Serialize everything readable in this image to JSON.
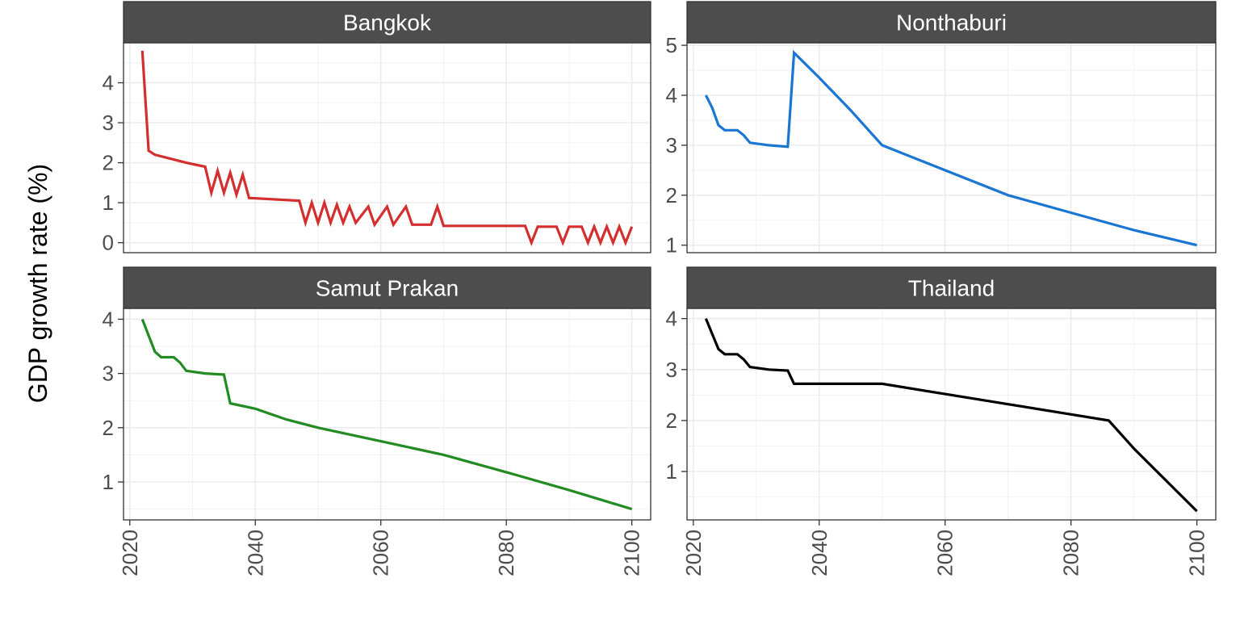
{
  "chart_data": {
    "type": "line",
    "ylabel": "GDP growth rate (%)",
    "xlabel": "",
    "x_ticks": [
      2020,
      2040,
      2060,
      2080,
      2100
    ],
    "xlim": [
      2019,
      2103
    ],
    "grid": true,
    "panels": [
      {
        "name": "Bangkok",
        "color": "#D32F2F",
        "ylim": [
          -0.25,
          5.0
        ],
        "y_ticks": [
          0,
          1,
          2,
          3,
          4
        ],
        "x": [
          2022,
          2023,
          2024,
          2029,
          2032,
          2033,
          2034,
          2035,
          2036,
          2037,
          2038,
          2039,
          2047,
          2048,
          2049,
          2050,
          2051,
          2052,
          2053,
          2054,
          2055,
          2056,
          2058,
          2059,
          2061,
          2062,
          2064,
          2065,
          2068,
          2069,
          2070,
          2083,
          2084,
          2085,
          2088,
          2089,
          2090,
          2092,
          2093,
          2094,
          2095,
          2096,
          2097,
          2098,
          2099,
          2100
        ],
        "y": [
          4.8,
          2.3,
          2.2,
          2.0,
          1.9,
          1.25,
          1.8,
          1.25,
          1.75,
          1.2,
          1.7,
          1.12,
          1.05,
          0.5,
          1.0,
          0.5,
          1.0,
          0.5,
          0.95,
          0.5,
          0.9,
          0.5,
          0.9,
          0.45,
          0.9,
          0.45,
          0.9,
          0.45,
          0.45,
          0.9,
          0.42,
          0.42,
          0.0,
          0.4,
          0.4,
          0.0,
          0.4,
          0.4,
          0.0,
          0.4,
          0.0,
          0.4,
          0.0,
          0.4,
          0.0,
          0.4
        ]
      },
      {
        "name": "Nonthaburi",
        "color": "#1976D2",
        "ylim": [
          0.85,
          5.05
        ],
        "y_ticks": [
          1,
          2,
          3,
          4,
          5
        ],
        "x": [
          2022,
          2023,
          2024,
          2025,
          2027,
          2028,
          2029,
          2032,
          2035,
          2036,
          2040,
          2045,
          2050,
          2060,
          2070,
          2080,
          2090,
          2100
        ],
        "y": [
          4.0,
          3.75,
          3.4,
          3.3,
          3.3,
          3.2,
          3.05,
          3.0,
          2.97,
          4.85,
          4.35,
          3.7,
          3.0,
          2.5,
          2.0,
          1.65,
          1.3,
          1.0
        ]
      },
      {
        "name": "Samut Prakan",
        "color": "#228B22",
        "ylim": [
          0.3,
          4.2
        ],
        "y_ticks": [
          1,
          2,
          3,
          4
        ],
        "x": [
          2022,
          2023,
          2024,
          2025,
          2027,
          2028,
          2029,
          2032,
          2035,
          2036,
          2040,
          2045,
          2050,
          2060,
          2070,
          2080,
          2090,
          2100
        ],
        "y": [
          4.0,
          3.7,
          3.4,
          3.3,
          3.3,
          3.2,
          3.05,
          3.0,
          2.98,
          2.45,
          2.35,
          2.15,
          2.0,
          1.75,
          1.5,
          1.18,
          0.85,
          0.5
        ]
      },
      {
        "name": "Thailand",
        "color": "#000000",
        "ylim": [
          0.05,
          4.2
        ],
        "y_ticks": [
          1,
          2,
          3,
          4
        ],
        "x": [
          2022,
          2023,
          2024,
          2025,
          2027,
          2028,
          2029,
          2032,
          2035,
          2036,
          2050,
          2060,
          2070,
          2080,
          2086,
          2090,
          2100
        ],
        "y": [
          4.0,
          3.7,
          3.4,
          3.3,
          3.3,
          3.2,
          3.05,
          3.0,
          2.98,
          2.72,
          2.72,
          2.52,
          2.32,
          2.12,
          2.0,
          1.45,
          0.22
        ]
      }
    ]
  }
}
